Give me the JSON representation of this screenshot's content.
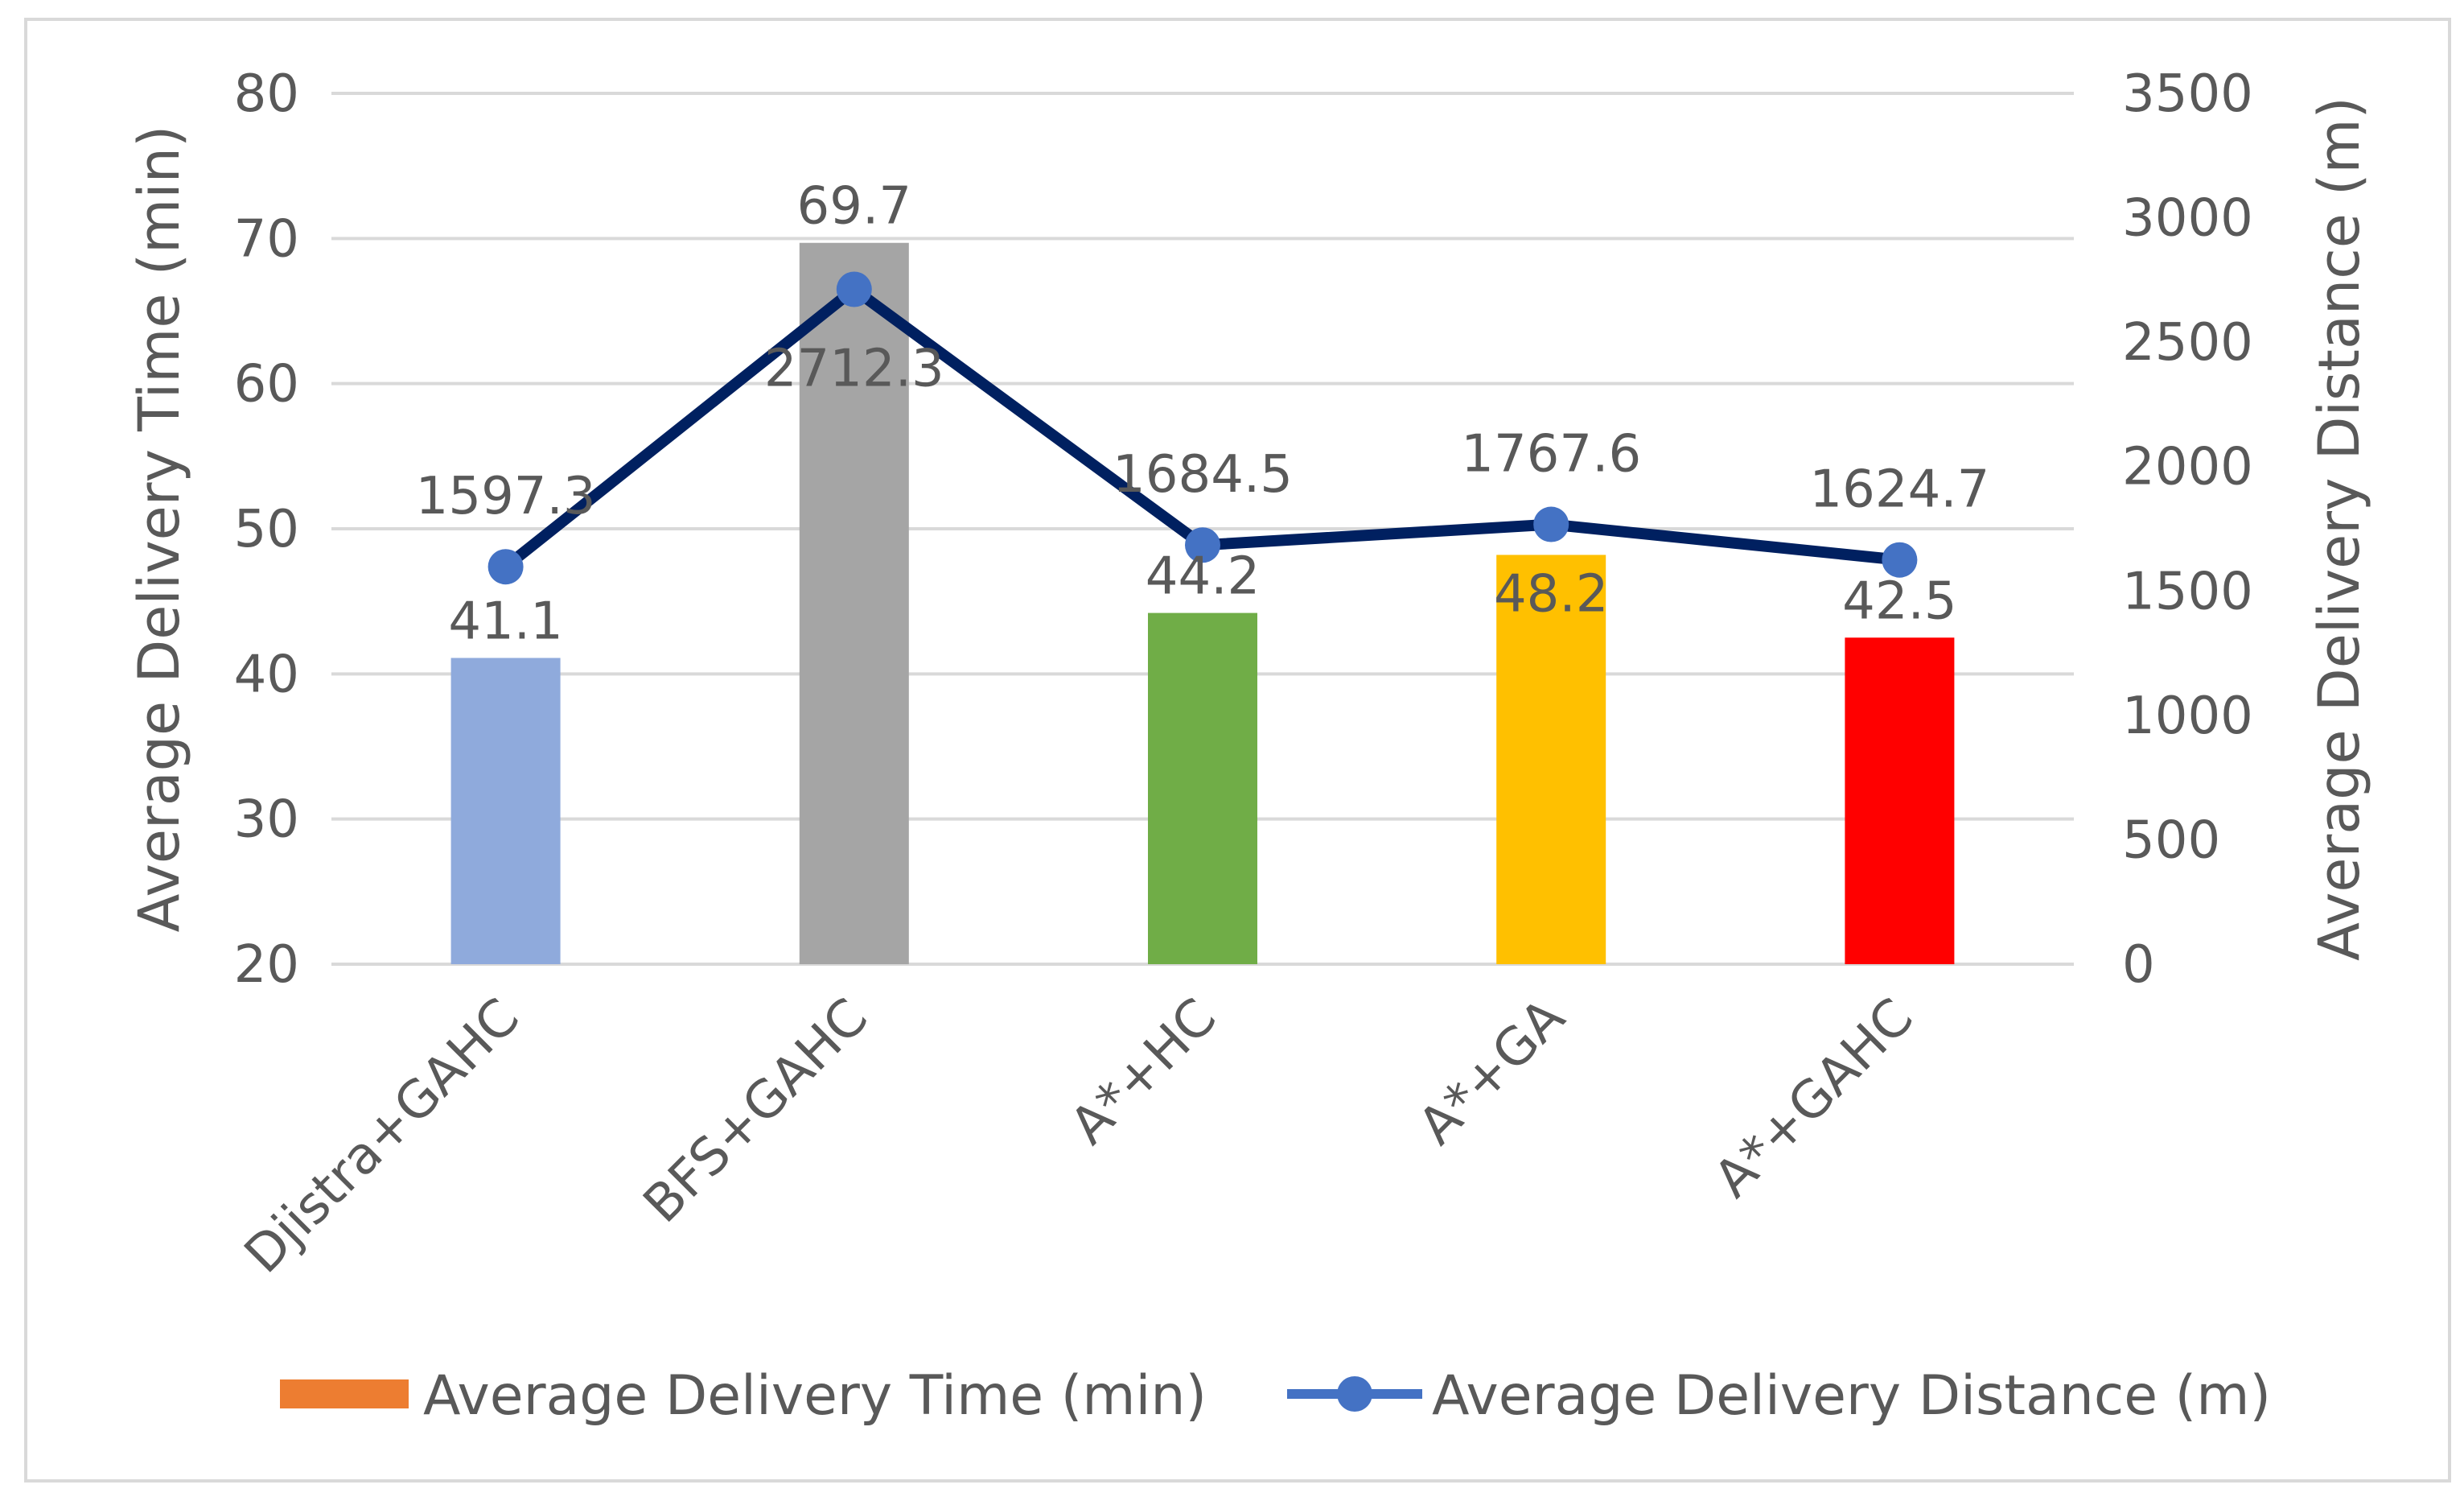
{
  "chart_data": {
    "type": "bar+line",
    "categories": [
      "Djistra+GAHC",
      "BFS+GAHC",
      "A*+HC",
      "A*+GA",
      "A*+GAHC"
    ],
    "series": [
      {
        "name": "Average Delivery Time (min)",
        "type": "bar",
        "axis": "left",
        "values": [
          41.1,
          69.7,
          44.2,
          48.2,
          42.5
        ],
        "labels": [
          "41.1",
          "69.7",
          "44.2",
          "48.2",
          "42.5"
        ],
        "bar_colors": [
          "#8FAADC",
          "#A5A5A5",
          "#70AD47",
          "#FFC000",
          "#FF0000"
        ],
        "legend_color": "#ED7D31"
      },
      {
        "name": "Average Delivery Distance (m)",
        "type": "line",
        "axis": "right",
        "values": [
          1597.3,
          2712.3,
          1684.5,
          1767.6,
          1624.7
        ],
        "labels": [
          "1597.3",
          "2712.3",
          "1684.5",
          "1767.6",
          "1624.7"
        ],
        "line_color": "#002060",
        "marker_color": "#4472C4"
      }
    ],
    "y_left": {
      "label": "Average Delivery Time (min)",
      "range": [
        20,
        80
      ],
      "ticks": [
        "20",
        "30",
        "40",
        "50",
        "60",
        "70",
        "80"
      ]
    },
    "y_right": {
      "label": "Average Delivery Distance (m)",
      "range": [
        0,
        3500
      ],
      "ticks": [
        "0",
        "500",
        "1000",
        "1500",
        "2000",
        "2500",
        "3000",
        "3500"
      ]
    },
    "grid": true,
    "legend_position": "bottom",
    "gridline_color": "#D9D9D9",
    "border_color": "#D9D9D9"
  }
}
